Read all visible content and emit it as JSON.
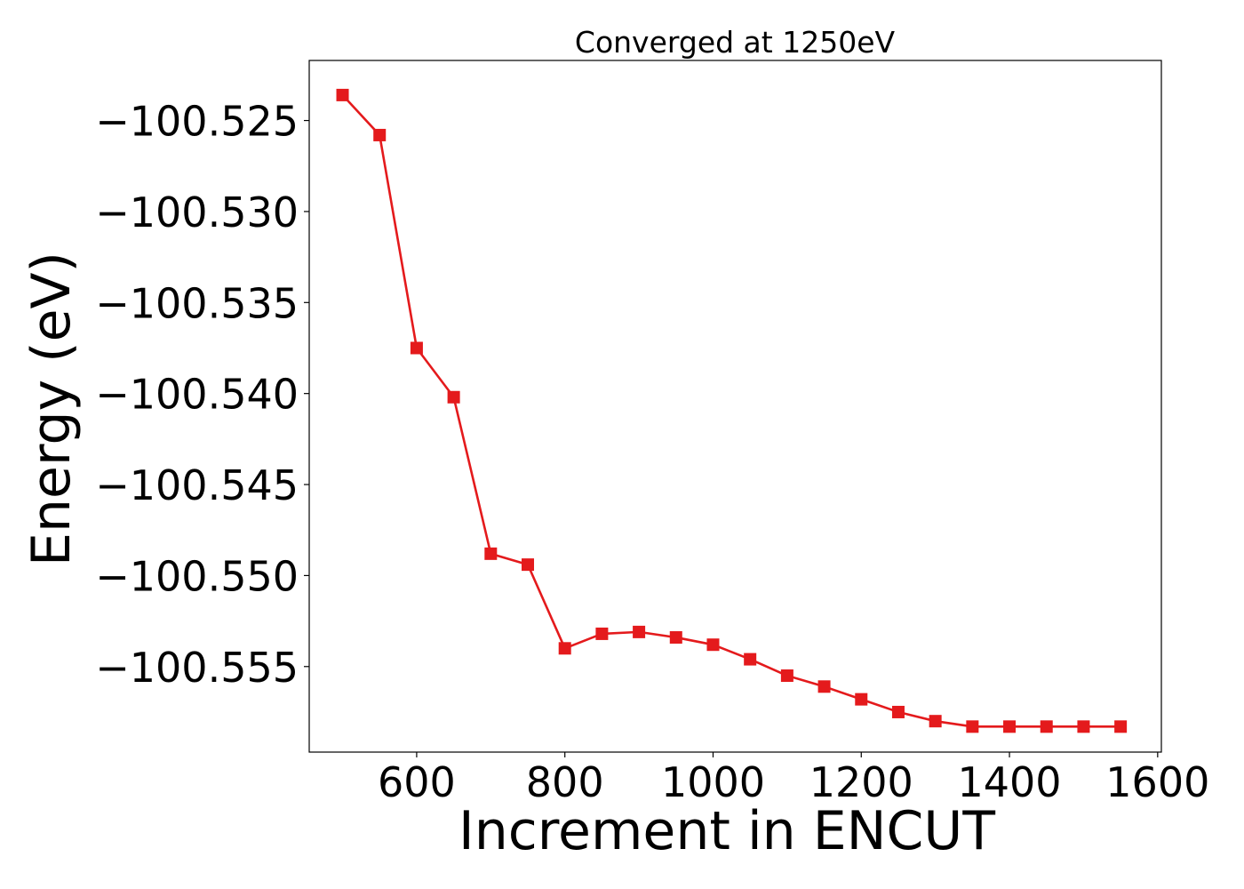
{
  "chart_data": {
    "type": "line",
    "title": "Converged at 1250eV",
    "xlabel": "Increment in ENCUT",
    "ylabel": "Energy (eV)",
    "xlim": [
      455,
      1605
    ],
    "ylim": [
      -100.5597,
      -100.5217
    ],
    "xticks": [
      600,
      800,
      1000,
      1200,
      1400,
      1600
    ],
    "xtick_labels": [
      "600",
      "800",
      "1000",
      "1200",
      "1400",
      "1600"
    ],
    "yticks": [
      -100.525,
      -100.53,
      -100.535,
      -100.54,
      -100.545,
      -100.55,
      -100.555
    ],
    "ytick_labels": [
      "−100.525",
      "−100.530",
      "−100.535",
      "−100.540",
      "−100.545",
      "−100.550",
      "−100.555"
    ],
    "grid": false,
    "series": [
      {
        "name": "Energy",
        "color": "#e41a1c",
        "marker": "square",
        "x": [
          500,
          550,
          600,
          650,
          700,
          750,
          800,
          850,
          900,
          950,
          1000,
          1050,
          1100,
          1150,
          1200,
          1250,
          1300,
          1350,
          1400,
          1450,
          1500,
          1550
        ],
        "y": [
          -100.5236,
          -100.5258,
          -100.5375,
          -100.5402,
          -100.5488,
          -100.5494,
          -100.554,
          -100.5532,
          -100.5531,
          -100.5534,
          -100.5538,
          -100.5546,
          -100.5555,
          -100.5561,
          -100.5568,
          -100.5575,
          -100.558,
          -100.5583,
          -100.5583,
          -100.5583,
          -100.5583,
          -100.5583
        ]
      }
    ]
  }
}
